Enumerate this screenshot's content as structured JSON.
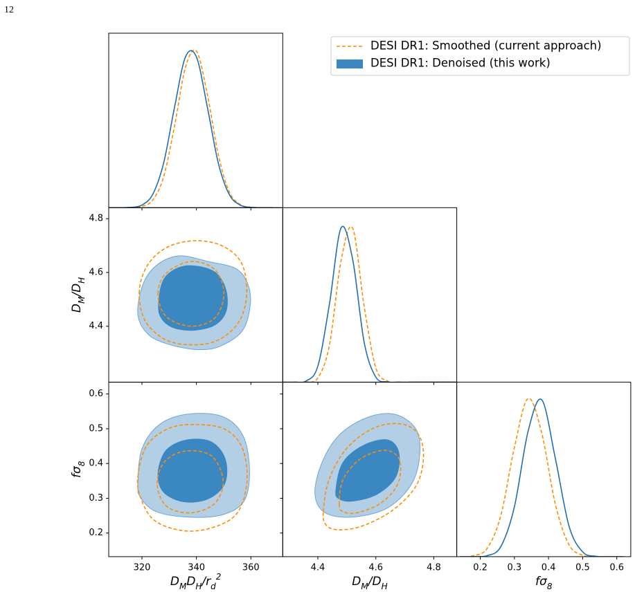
{
  "page_number": "12",
  "chart_data": {
    "type": "corner",
    "series": [
      {
        "name": "DESI DR1: Smoothed (current approach)",
        "color": "#ff8c00",
        "style": "dashed"
      },
      {
        "name": "DESI DR1: Denoised (this work)",
        "color": "#1f6eb3",
        "fill": "#3a87c2",
        "outer_fill": "#b2cfe6",
        "style": "filled"
      }
    ],
    "legend_position": "upper right",
    "parameters": [
      {
        "label": [
          {
            "text": "D"
          },
          {
            "text": "M",
            "script": "sub"
          },
          {
            "text": "D"
          },
          {
            "text": "H",
            "script": "sub"
          },
          {
            "text": "/r"
          },
          {
            "text": "d",
            "script": "sub"
          },
          {
            "text": "2",
            "script": "super"
          }
        ],
        "xlim": [
          307.8,
          371.7
        ],
        "ticks": [
          320,
          340,
          360
        ]
      },
      {
        "label": [
          {
            "text": "D"
          },
          {
            "text": "M",
            "script": "sub"
          },
          {
            "text": "/D"
          },
          {
            "text": "H",
            "script": "sub"
          }
        ],
        "xlim": [
          4.279,
          4.879
        ],
        "ylim": [
          4.192,
          4.841
        ],
        "ticks": [
          4.4,
          4.6,
          4.8
        ]
      },
      {
        "label": [
          {
            "text": "fσ"
          },
          {
            "text": "8",
            "script": "sub"
          }
        ],
        "xlim": [
          0.131,
          0.641
        ],
        "ylim": [
          0.132,
          0.634
        ],
        "ticks": [
          0.2,
          0.3,
          0.4,
          0.5,
          0.6
        ]
      }
    ],
    "marginal_ylim": [
      0,
      1.1
    ],
    "marginals": [
      {
        "x": [
          308,
          312,
          316,
          320,
          324,
          328,
          332,
          336,
          340,
          344,
          348,
          352,
          356,
          360,
          364,
          368
        ],
        "values": [
          [
            0,
            0.0001,
            0.001,
            0.008,
            0.049,
            0.197,
            0.518,
            0.886,
            0.987,
            0.715,
            0.337,
            0.103,
            0.021,
            0.003,
            0.0002,
            0
          ],
          [
            0,
            0.0002,
            0.002,
            0.017,
            0.085,
            0.284,
            0.636,
            0.951,
            0.951,
            0.636,
            0.284,
            0.085,
            0.017,
            0.002,
            0.0002,
            0
          ]
        ]
      },
      {
        "x": [
          4.28,
          4.32,
          4.36,
          4.4,
          4.44,
          4.48,
          4.52,
          4.56,
          4.6,
          4.64,
          4.68,
          4.72,
          4.76,
          4.8,
          4.84,
          4.88
        ],
        "values": [
          [
            0,
            0,
            0.001,
            0.027,
            0.233,
            0.765,
            0.971,
            0.475,
            0.09,
            0.007,
            0.0002,
            0,
            0,
            0,
            0,
            0
          ],
          [
            0,
            0.0003,
            0.008,
            0.101,
            0.492,
            0.972,
            0.775,
            0.249,
            0.032,
            0.002,
            0,
            0,
            0,
            0,
            0,
            0
          ]
        ]
      },
      {
        "x": [
          0.14,
          0.18,
          0.22,
          0.26,
          0.3,
          0.34,
          0.38,
          0.42,
          0.46,
          0.5,
          0.54,
          0.58,
          0.62
        ],
        "values": [
          [
            0.0003,
            0.006,
            0.052,
            0.258,
            0.689,
            0.997,
            0.779,
            0.33,
            0.075,
            0.009,
            0.0006,
            0,
            0
          ],
          [
            0,
            0.0003,
            0.006,
            0.063,
            0.315,
            0.79,
            0.989,
            0.619,
            0.193,
            0.03,
            0.002,
            0,
            0
          ]
        ]
      }
    ],
    "contours": [
      {
        "series": [
          {
            "levels": [
              {
                "x": [
                  319.0,
                  321.8,
                  328.9,
                  339.1,
                  349.3,
                  356.5,
                  358.5,
                  355.7,
                  348.1,
                  338.6,
                  328.9,
                  321.3
                ],
                "y": [
                  4.523,
                  4.623,
                  4.692,
                  4.718,
                  4.7,
                  4.636,
                  4.523,
                  4.418,
                  4.349,
                  4.331,
                  4.349,
                  4.418
                ]
              },
              {
                "x": [
                  325.9,
                  328.9,
                  338.1,
                  346.8,
                  350.1,
                  346.8,
                  338.1,
                  328.9
                ],
                "y": [
                  4.521,
                  4.597,
                  4.641,
                  4.61,
                  4.521,
                  4.431,
                  4.4,
                  4.436
                ]
              }
            ]
          },
          {
            "levels": [
              {
                "x": [
                  318.5,
                  320.5,
                  325.9,
                  334.0,
                  344.2,
                  354.4,
                  358.8,
                  359.8,
                  357.0,
                  349.3,
                  341.7,
                  331.5,
                  322.6
                ],
                "y": [
                  4.444,
                  4.559,
                  4.631,
                  4.662,
                  4.641,
                  4.615,
                  4.559,
                  4.482,
                  4.385,
                  4.328,
                  4.313,
                  4.328,
                  4.367
                ]
              },
              {
                "x": [
                  326.1,
                  327.9,
                  333.5,
                  340.4,
                  347.3,
                  350.9,
                  350.9,
                  346.8,
                  339.1,
                  331.5,
                  327.1
                ],
                "y": [
                  4.482,
                  4.572,
                  4.618,
                  4.623,
                  4.597,
                  4.533,
                  4.456,
                  4.405,
                  4.385,
                  4.395,
                  4.431
                ]
              }
            ]
          }
        ]
      },
      {
        "series": [
          {
            "levels": [
              {
                "x": [
                  318.5,
                  321.8,
                  330.2,
                  340.4,
                  350.6,
                  357.0,
                  358.5,
                  354.4,
                  344.2,
                  334.0,
                  324.3,
                  319.5
                ],
                "y": [
                  0.362,
                  0.452,
                  0.502,
                  0.512,
                  0.498,
                  0.442,
                  0.342,
                  0.252,
                  0.212,
                  0.208,
                  0.238,
                  0.302
                ]
              },
              {
                "x": [
                  325.6,
                  328.4,
                  336.1,
                  345.5,
                  349.8,
                  346.8,
                  337.9,
                  328.9
                ],
                "y": [
                  0.342,
                  0.406,
                  0.436,
                  0.422,
                  0.352,
                  0.286,
                  0.258,
                  0.278
                ]
              }
            ]
          },
          {
            "levels": [
              {
                "x": [
                  318.5,
                  320.0,
                  326.4,
                  336.6,
                  349.3,
                  357.0,
                  359.5,
                  357.5,
                  349.3,
                  336.6,
                  325.1,
                  319.5
                ],
                "y": [
                  0.342,
                  0.442,
                  0.512,
                  0.542,
                  0.536,
                  0.482,
                  0.382,
                  0.292,
                  0.252,
                  0.246,
                  0.262,
                  0.302
                ]
              },
              {
                "x": [
                  325.9,
                  328.9,
                  336.6,
                  345.5,
                  350.6,
                  350.4,
                  344.2,
                  335.3,
                  327.9
                ],
                "y": [
                  0.372,
                  0.438,
                  0.468,
                  0.462,
                  0.412,
                  0.342,
                  0.298,
                  0.29,
                  0.318
                ]
              }
            ]
          }
        ]
      },
      {
        "series": [
          {
            "levels": [
              {
                "x": [
                  4.419,
                  4.438,
                  4.498,
                  4.593,
                  4.688,
                  4.748,
                  4.764,
                  4.736,
                  4.652,
                  4.545,
                  4.462,
                  4.426
                ],
                "y": [
                  0.262,
                  0.352,
                  0.442,
                  0.502,
                  0.514,
                  0.482,
                  0.412,
                  0.332,
                  0.262,
                  0.218,
                  0.21,
                  0.226
                ]
              },
              {
                "x": [
                  4.474,
                  4.486,
                  4.545,
                  4.629,
                  4.681,
                  4.676,
                  4.617,
                  4.533,
                  4.486
                ],
                "y": [
                  0.282,
                  0.352,
                  0.412,
                  0.438,
                  0.412,
                  0.342,
                  0.286,
                  0.258,
                  0.262
                ]
              }
            ]
          },
          {
            "levels": [
              {
                "x": [
                  4.39,
                  4.414,
                  4.474,
                  4.569,
                  4.664,
                  4.736,
                  4.752,
                  4.724,
                  4.64,
                  4.521,
                  4.426
                ],
                "y": [
                  0.312,
                  0.402,
                  0.482,
                  0.532,
                  0.542,
                  0.502,
                  0.432,
                  0.342,
                  0.272,
                  0.246,
                  0.258
                ]
              },
              {
                "x": [
                  4.462,
                  4.486,
                  4.557,
                  4.64,
                  4.679,
                  4.669,
                  4.605,
                  4.521,
                  4.474
                ],
                "y": [
                  0.322,
                  0.402,
                  0.452,
                  0.468,
                  0.432,
                  0.362,
                  0.312,
                  0.292,
                  0.298
                ]
              }
            ]
          }
        ]
      }
    ]
  }
}
